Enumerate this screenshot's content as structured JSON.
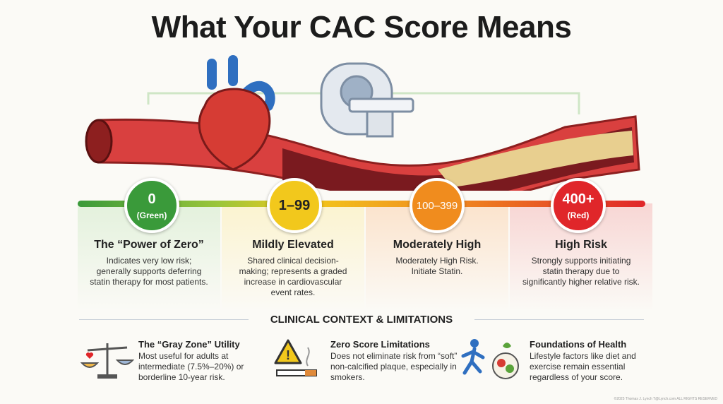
{
  "title": "What Your CAC Score Means",
  "scores": [
    {
      "range": "0",
      "label": "(Green)",
      "heading": "The “Power of Zero”",
      "text": "Indicates very low risk; generally supports deferring statin therapy for most patients."
    },
    {
      "range": "1–99",
      "heading": "Mildly Elevated",
      "text": "Shared clinical decision-making; represents a graded increase in cardiovascular event rates."
    },
    {
      "range": "100–399",
      "heading": "Moderately High",
      "text": "Moderately High Risk. Initiate Statin."
    },
    {
      "range": "400+",
      "label": "(Red)",
      "heading": "High Risk",
      "text": "Strongly supports initiating statin therapy due to significantly higher relative risk."
    }
  ],
  "context": {
    "title": "CLINICAL CONTEXT & LIMITATIONS",
    "items": [
      {
        "title": "The “Gray Zone” Utility",
        "text": "Most useful for adults at intermediate (7.5%–20%) or borderline 10-year risk."
      },
      {
        "title": "Zero Score Limitations",
        "text": "Does not eliminate risk from “soft” non-calcified plaque, especially in smokers."
      },
      {
        "title": "Foundations of Health",
        "text": "Lifestyle factors like diet and exercise remain essential regardless of your score."
      }
    ]
  },
  "footer": "©2025 Thomas J. Lynch T@Lynch.com ALL RIGHTS RESERVED"
}
